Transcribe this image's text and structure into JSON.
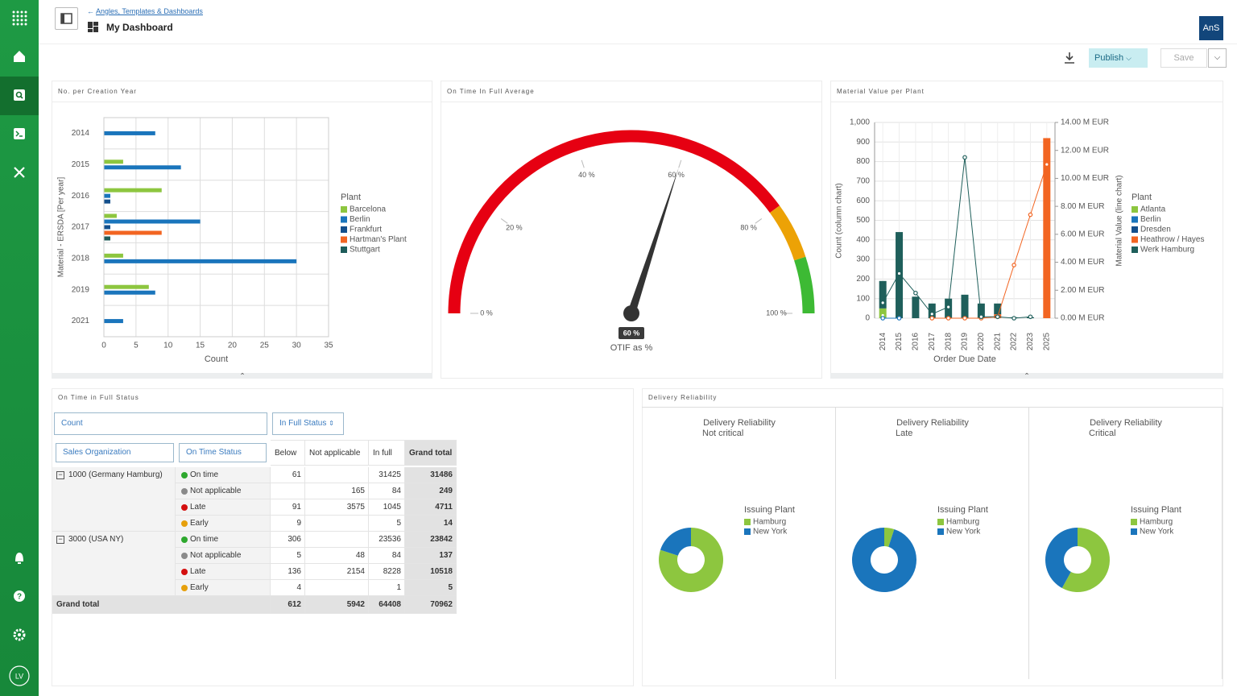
{
  "header": {
    "breadcrumb": "Angles, Templates & Dashboards",
    "title": "My Dashboard",
    "account": "AnS"
  },
  "toolbar": {
    "publish": "Publish",
    "save": "Save"
  },
  "user": {
    "initials": "LV"
  },
  "chart_data": [
    {
      "type": "hbar",
      "title": "No. per Creation Year",
      "y_label": "Material - ERSDA [Per year]",
      "x_label": "Count",
      "legend_title": "Plant",
      "categories": [
        "2014",
        "2015",
        "2016",
        "2017",
        "2018",
        "2019",
        "2021"
      ],
      "series": [
        {
          "name": "Barcelona",
          "color": "#8dc63f",
          "values": [
            null,
            3,
            9,
            2,
            3,
            7,
            null
          ]
        },
        {
          "name": "Berlin",
          "color": "#1a75bc",
          "values": [
            8,
            12,
            1,
            15,
            30,
            8,
            3
          ]
        },
        {
          "name": "Frankfurt",
          "color": "#134f8c",
          "values": [
            null,
            null,
            1,
            1,
            null,
            null,
            null
          ]
        },
        {
          "name": "Hartman's Plant",
          "color": "#f26522",
          "values": [
            null,
            null,
            null,
            9,
            null,
            null,
            null
          ]
        },
        {
          "name": "Stuttgart",
          "color": "#1e5c5a",
          "values": [
            null,
            null,
            null,
            1,
            null,
            null,
            null
          ]
        }
      ],
      "xlim": [
        0,
        35
      ],
      "xticks": [
        0,
        5,
        10,
        15,
        20,
        25,
        30,
        35
      ],
      "grid": true
    },
    {
      "type": "gauge",
      "title": "On Time In Full Average",
      "value": 60,
      "value_label": "60 %",
      "label": "OTIF as %",
      "range": [
        0,
        100
      ],
      "ticks": [
        {
          "value": 0,
          "label": "0 %"
        },
        {
          "value": 20,
          "label": "20 %"
        },
        {
          "value": 40,
          "label": "40 %"
        },
        {
          "value": 60,
          "label": "60 %"
        },
        {
          "value": 80,
          "label": "80 %"
        },
        {
          "value": 100,
          "label": "100 %"
        }
      ],
      "bands": [
        {
          "from": 0,
          "to": 80,
          "color": "#e60012"
        },
        {
          "from": 80,
          "to": 90,
          "color": "#eca206"
        },
        {
          "from": 90,
          "to": 100,
          "color": "#3dba34"
        }
      ]
    },
    {
      "type": "bar-line",
      "title": "Material Value per Plant",
      "x_label": "Order Due Date",
      "y_label": "Count (column chart)",
      "y2_label": "Material Value (line chart)",
      "legend_title": "Plant",
      "categories": [
        "2014",
        "2015",
        "2016",
        "2017",
        "2018",
        "2019",
        "2020",
        "2021",
        "2022",
        "2023",
        "2025"
      ],
      "line_axis": "y2",
      "series": [
        {
          "name": "Atlanta",
          "color": "#8dc63f",
          "values": [
            50,
            null,
            null,
            null,
            null,
            null,
            null,
            null,
            null,
            null,
            null
          ],
          "line_values": [
            200000,
            null,
            null,
            null,
            null,
            null,
            null,
            null,
            null,
            null,
            null
          ]
        },
        {
          "name": "Berlin",
          "color": "#1a75bc",
          "values": [
            null,
            null,
            null,
            null,
            null,
            null,
            null,
            null,
            null,
            null,
            null
          ],
          "line_values": [
            0,
            0,
            null,
            null,
            null,
            null,
            null,
            null,
            null,
            null,
            null
          ]
        },
        {
          "name": "Dresden",
          "color": "#134f8c",
          "values": [
            null,
            null,
            null,
            null,
            null,
            null,
            null,
            null,
            null,
            null,
            null
          ],
          "line_values": [
            null,
            null,
            null,
            null,
            null,
            null,
            null,
            null,
            null,
            null,
            null
          ]
        },
        {
          "name": "Heathrow / Hayes",
          "color": "#f26522",
          "values": [
            null,
            null,
            null,
            null,
            null,
            null,
            null,
            20,
            null,
            null,
            920
          ],
          "line_values": [
            null,
            null,
            null,
            0,
            0,
            0,
            0,
            100000,
            3800000,
            7400000,
            11000000
          ]
        },
        {
          "name": "Werk Hamburg",
          "color": "#1f5f5b",
          "values": [
            140,
            440,
            110,
            75,
            100,
            120,
            75,
            55,
            5,
            5,
            null
          ],
          "line_values": [
            1100000,
            3200000,
            1800000,
            300000,
            800000,
            11500000,
            100000,
            100000,
            0,
            100000,
            null
          ]
        }
      ],
      "ylim": [
        0,
        1000
      ],
      "yticks": [
        0,
        100,
        200,
        300,
        400,
        500,
        600,
        700,
        800,
        900,
        {
          "value": 1000,
          "label": "1,000"
        }
      ],
      "y2lim": [
        0,
        14000000
      ],
      "y2ticks": [
        {
          "value": 0,
          "label": "0.00 M EUR"
        },
        {
          "value": 2000000,
          "label": "2.00 M EUR"
        },
        {
          "value": 4000000,
          "label": "4.00 M EUR"
        },
        {
          "value": 6000000,
          "label": "6.00 M EUR"
        },
        {
          "value": 8000000,
          "label": "8.00 M EUR"
        },
        {
          "value": 10000000,
          "label": "10.00 M EUR"
        },
        {
          "value": 12000000,
          "label": "12.00 M EUR"
        },
        {
          "value": 14000000,
          "label": "14.00 M EUR"
        }
      ],
      "grid": true
    },
    {
      "type": "pie",
      "donut": true,
      "title": "Delivery Reliability",
      "subtitle": "Not critical",
      "legend_title": "Issuing Plant",
      "categories": [
        "Hamburg",
        "New York"
      ],
      "colors": [
        "#8dc63f",
        "#1a75bc"
      ],
      "values": [
        80,
        20
      ]
    },
    {
      "type": "pie",
      "donut": true,
      "title": "Delivery Reliability",
      "subtitle": "Late",
      "legend_title": "Issuing Plant",
      "categories": [
        "Hamburg",
        "New York"
      ],
      "colors": [
        "#8dc63f",
        "#1a75bc"
      ],
      "values": [
        5,
        95
      ]
    },
    {
      "type": "pie",
      "donut": true,
      "title": "Delivery Reliability",
      "subtitle": "Critical",
      "legend_title": "Issuing Plant",
      "categories": [
        "Hamburg",
        "New York"
      ],
      "colors": [
        "#8dc63f",
        "#1a75bc"
      ],
      "values": [
        58,
        42
      ]
    }
  ],
  "delivery_title": "Delivery Reliability",
  "pivot": {
    "title": "On Time in Full Status",
    "measure": "Count",
    "column_field": "In Full Status",
    "row_fields": [
      "Sales Organization",
      "On Time Status"
    ],
    "columns": [
      "Below",
      "Not applicable",
      "In full",
      "Grand total"
    ],
    "groups": [
      {
        "label": "1000 (Germany Hamburg)",
        "rows": [
          {
            "status": "On time",
            "color": "#2ea82e",
            "values": [
              61,
              null,
              31425,
              31486
            ]
          },
          {
            "status": "Not applicable",
            "color": "#8a8a8a",
            "values": [
              null,
              165,
              84,
              249
            ]
          },
          {
            "status": "Late",
            "color": "#d40f0f",
            "values": [
              91,
              3575,
              1045,
              4711
            ]
          },
          {
            "status": "Early",
            "color": "#e6a00c",
            "values": [
              9,
              null,
              5,
              14
            ]
          }
        ]
      },
      {
        "label": "3000 (USA NY)",
        "rows": [
          {
            "status": "On time",
            "color": "#2ea82e",
            "values": [
              306,
              null,
              23536,
              23842
            ]
          },
          {
            "status": "Not applicable",
            "color": "#8a8a8a",
            "values": [
              5,
              48,
              84,
              137
            ]
          },
          {
            "status": "Late",
            "color": "#d40f0f",
            "values": [
              136,
              2154,
              8228,
              10518
            ]
          },
          {
            "status": "Early",
            "color": "#e6a00c",
            "values": [
              4,
              null,
              1,
              5
            ]
          }
        ]
      }
    ],
    "grand_total": {
      "label": "Grand total",
      "values": [
        612,
        5942,
        64408,
        70962
      ]
    }
  }
}
